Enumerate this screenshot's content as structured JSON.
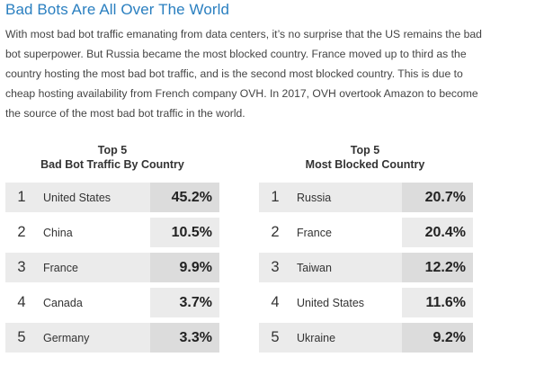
{
  "heading": "Bad Bots Are All Over The World",
  "paragraph_lines": [
    "With most bad bot traffic emanating from data centers, it’s no surprise that the US remains the bad",
    "bot superpower. But Russia became the most blocked country. France moved up to third as the",
    "country hosting the most bad bot traffic, and is the second most blocked country. This is due to",
    "cheap hosting availability from French company OVH. In 2017, OVH overtook Amazon to become",
    "the source of the most bad bot traffic in the world."
  ],
  "left_table": {
    "title_line1": "Top 5",
    "title_line2": "Bad Bot Traffic By Country",
    "rows": [
      {
        "rank": "1",
        "country": "United States",
        "value": "45.2%"
      },
      {
        "rank": "2",
        "country": "China",
        "value": "10.5%"
      },
      {
        "rank": "3",
        "country": "France",
        "value": "9.9%"
      },
      {
        "rank": "4",
        "country": "Canada",
        "value": "3.7%"
      },
      {
        "rank": "5",
        "country": "Germany",
        "value": "3.3%"
      }
    ]
  },
  "right_table": {
    "title_line1": "Top 5",
    "title_line2": "Most Blocked Country",
    "rows": [
      {
        "rank": "1",
        "country": "Russia",
        "value": "20.7%"
      },
      {
        "rank": "2",
        "country": "France",
        "value": "20.4%"
      },
      {
        "rank": "3",
        "country": "Taiwan",
        "value": "12.2%"
      },
      {
        "rank": "4",
        "country": "United States",
        "value": "11.6%"
      },
      {
        "rank": "5",
        "country": "Ukraine",
        "value": "9.2%"
      }
    ]
  }
}
